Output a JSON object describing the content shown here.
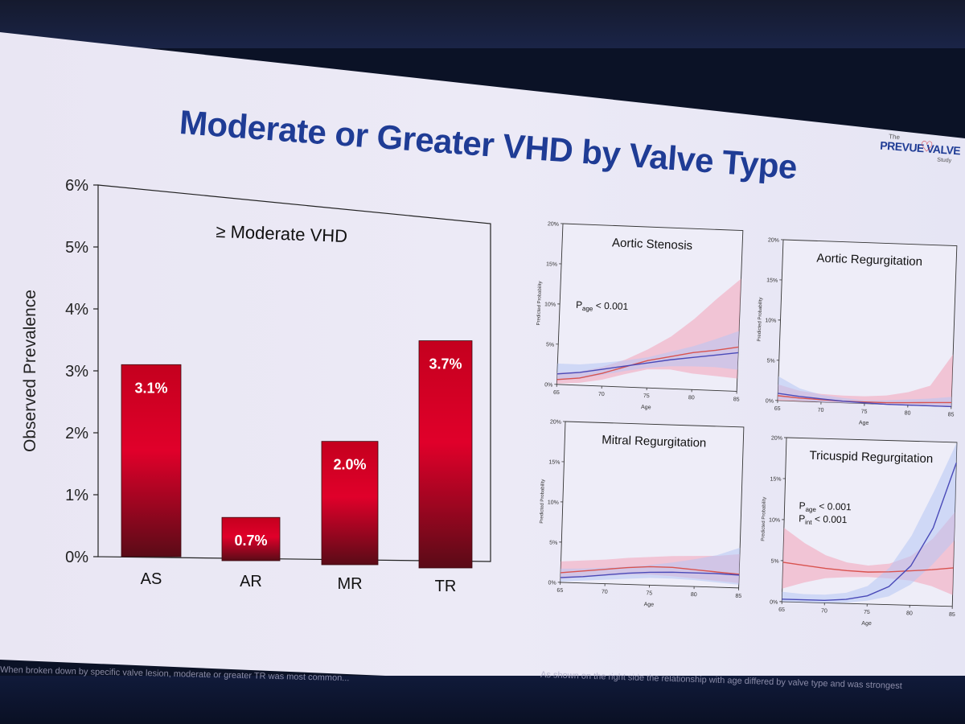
{
  "slide": {
    "title": "Moderate or Greater VHD by Valve Type",
    "logo": {
      "prefix": "The",
      "name": "PREVUE VALVE",
      "suffix": "Study"
    },
    "footer_left": "When broken down by specific valve lesion, moderate or greater TR was most common...",
    "footer_right": "As shown on the right side the relationship with age differed by valve type and was strongest"
  },
  "colors": {
    "title": "#1f3c95",
    "bar_top": "#e0002a",
    "bar_bottom": "#5a0b17",
    "red_series": "#d9534f",
    "blue_series": "#4a4ab8",
    "red_band": "#f4a3b8",
    "blue_band": "#b7c7f4"
  },
  "chart_data": [
    {
      "type": "bar",
      "title": "≥ Moderate VHD",
      "ylabel": "Observed Prevalence",
      "xlabel": "",
      "categories": [
        "AS",
        "AR",
        "MR",
        "TR"
      ],
      "values": [
        3.1,
        0.7,
        2.0,
        3.7
      ],
      "value_labels": [
        "3.1%",
        "0.7%",
        "2.0%",
        "3.7%"
      ],
      "ylim": [
        0,
        6
      ],
      "yticks": [
        0,
        1,
        2,
        3,
        4,
        5,
        6
      ],
      "ytick_labels": [
        "0%",
        "1%",
        "2%",
        "3%",
        "4%",
        "5%",
        "6%"
      ],
      "grid": false
    },
    {
      "type": "line",
      "title": "Aortic Stenosis",
      "xlabel": "Age",
      "ylabel": "Predicted Probability",
      "annotation": [
        {
          "text": "P",
          "sub": "age",
          "rest": " < 0.001"
        }
      ],
      "xlim": [
        65,
        85
      ],
      "ylim": [
        0,
        20
      ],
      "xticks": [
        65,
        70,
        75,
        80,
        85
      ],
      "yticks": [
        0,
        5,
        10,
        15,
        20
      ],
      "ytick_labels": [
        "0%",
        "5%",
        "10%",
        "15%",
        "20%"
      ],
      "x": [
        65,
        67.5,
        70,
        72.5,
        75,
        77.5,
        80,
        82.5,
        85
      ],
      "series": [
        {
          "color": "red",
          "values": [
            0.6,
            0.9,
            1.6,
            2.5,
            3.4,
            4.0,
            4.6,
            5.0,
            5.5
          ],
          "band_low": [
            0.1,
            0.3,
            0.8,
            1.6,
            2.3,
            2.4,
            2.0,
            1.8,
            1.6
          ],
          "band_high": [
            1.5,
            1.7,
            2.4,
            3.4,
            4.8,
            6.5,
            8.8,
            11.5,
            14.0
          ]
        },
        {
          "color": "blue",
          "values": [
            1.3,
            1.6,
            2.1,
            2.6,
            3.1,
            3.6,
            4.0,
            4.4,
            4.8
          ],
          "band_low": [
            0.5,
            0.8,
            1.4,
            2.0,
            2.5,
            2.8,
            2.9,
            2.9,
            2.7
          ],
          "band_high": [
            2.6,
            2.6,
            2.9,
            3.3,
            3.8,
            4.6,
            5.4,
            6.4,
            7.5
          ]
        }
      ]
    },
    {
      "type": "line",
      "title": "Aortic Regurgitation",
      "xlabel": "Age",
      "ylabel": "Predicted Probability",
      "annotation": [],
      "xlim": [
        65,
        85
      ],
      "ylim": [
        0,
        20
      ],
      "xticks": [
        65,
        70,
        75,
        80,
        85
      ],
      "yticks": [
        0,
        5,
        10,
        15,
        20
      ],
      "ytick_labels": [
        "0%",
        "5%",
        "10%",
        "15%",
        "20%"
      ],
      "x": [
        65,
        67.5,
        70,
        72.5,
        75,
        77.5,
        80,
        82.5,
        85
      ],
      "series": [
        {
          "color": "red",
          "values": [
            0.6,
            0.4,
            0.3,
            0.2,
            0.2,
            0.2,
            0.3,
            0.4,
            0.5
          ],
          "band_low": [
            0.0,
            0.0,
            0.0,
            0.0,
            0.0,
            0.0,
            0.0,
            0.0,
            0.0
          ],
          "band_high": [
            2.0,
            1.3,
            1.0,
            0.9,
            0.9,
            1.1,
            1.6,
            2.5,
            6.5
          ]
        },
        {
          "color": "blue",
          "values": [
            0.9,
            0.6,
            0.4,
            0.2,
            0.1,
            0.0,
            0.0,
            0.0,
            0.0
          ],
          "band_low": [
            0.2,
            0.1,
            0.0,
            0.0,
            0.0,
            0.0,
            0.0,
            0.0,
            0.0
          ],
          "band_high": [
            3.0,
            1.6,
            0.9,
            0.6,
            0.4,
            0.5,
            0.7,
            0.9,
            1.2
          ]
        }
      ]
    },
    {
      "type": "line",
      "title": "Mitral Regurgitation",
      "xlabel": "Age",
      "ylabel": "Predicted Probability",
      "annotation": [],
      "xlim": [
        65,
        85
      ],
      "ylim": [
        0,
        20
      ],
      "xticks": [
        65,
        70,
        75,
        80,
        85
      ],
      "yticks": [
        0,
        5,
        10,
        15,
        20
      ],
      "ytick_labels": [
        "0%",
        "5%",
        "10%",
        "15%",
        "20%"
      ],
      "x": [
        65,
        67.5,
        70,
        72.5,
        75,
        77.5,
        80,
        82.5,
        85
      ],
      "series": [
        {
          "color": "red",
          "values": [
            1.2,
            1.5,
            1.8,
            2.1,
            2.3,
            2.3,
            2.1,
            1.9,
            1.7
          ],
          "band_low": [
            0.4,
            0.7,
            1.0,
            1.2,
            1.3,
            1.2,
            1.0,
            0.8,
            0.6
          ],
          "band_high": [
            2.6,
            2.8,
            3.0,
            3.3,
            3.5,
            3.7,
            3.8,
            3.9,
            4.2
          ]
        },
        {
          "color": "blue",
          "values": [
            0.6,
            0.8,
            1.1,
            1.4,
            1.6,
            1.7,
            1.7,
            1.7,
            1.6
          ],
          "band_low": [
            0.1,
            0.3,
            0.5,
            0.7,
            0.9,
            0.9,
            0.8,
            0.6,
            0.4
          ],
          "band_high": [
            1.7,
            1.8,
            2.0,
            2.2,
            2.5,
            2.9,
            3.4,
            4.0,
            5.0
          ]
        }
      ]
    },
    {
      "type": "line",
      "title": "Tricuspid Regurgitation",
      "xlabel": "Age",
      "ylabel": "Predicted Probability",
      "annotation": [
        {
          "text": "P",
          "sub": "age",
          "rest": " < 0.001"
        },
        {
          "text": "P",
          "sub": "int",
          "rest": " < 0.001"
        }
      ],
      "xlim": [
        65,
        85
      ],
      "ylim": [
        0,
        20
      ],
      "xticks": [
        65,
        70,
        75,
        80,
        85
      ],
      "yticks": [
        0,
        5,
        10,
        15,
        20
      ],
      "ytick_labels": [
        "0%",
        "5%",
        "10%",
        "15%",
        "20%"
      ],
      "x": [
        65,
        67.5,
        70,
        72.5,
        75,
        77.5,
        80,
        82.5,
        85
      ],
      "series": [
        {
          "color": "red",
          "values": [
            4.8,
            4.5,
            4.2,
            4.0,
            3.9,
            4.0,
            4.2,
            4.4,
            4.7
          ],
          "band_low": [
            1.6,
            2.4,
            3.0,
            3.2,
            3.3,
            3.2,
            3.0,
            2.4,
            1.4
          ],
          "band_high": [
            9.0,
            7.2,
            5.8,
            5.0,
            4.7,
            5.0,
            6.0,
            8.2,
            11.5
          ]
        },
        {
          "color": "blue",
          "values": [
            0.3,
            0.3,
            0.3,
            0.5,
            1.0,
            2.2,
            4.8,
            9.5,
            17.5
          ],
          "band_low": [
            0.0,
            0.0,
            0.0,
            0.1,
            0.4,
            1.0,
            2.5,
            5.0,
            8.0
          ],
          "band_high": [
            1.2,
            1.0,
            1.0,
            1.3,
            2.2,
            4.5,
            8.5,
            14.0,
            20.0
          ]
        }
      ]
    }
  ]
}
